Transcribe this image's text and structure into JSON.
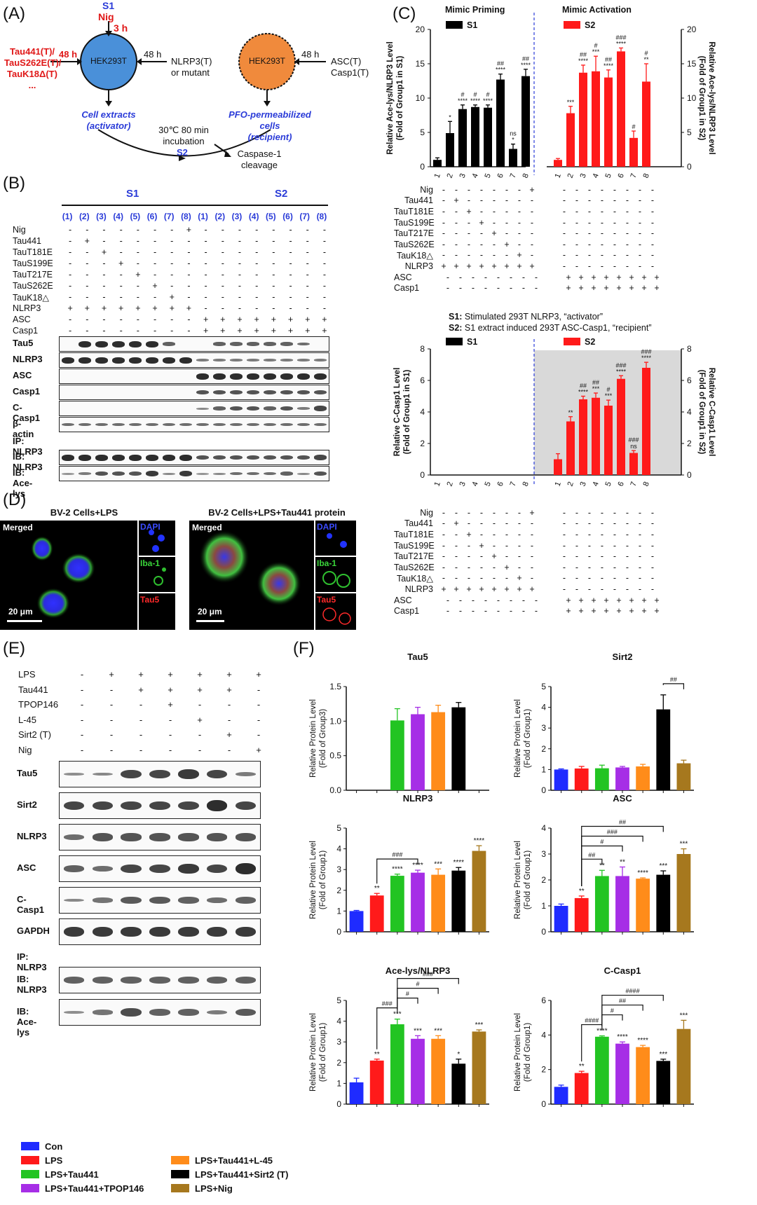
{
  "panel_labels": {
    "a": "(A)",
    "b": "(B)",
    "c": "(C)",
    "d": "(D)",
    "e": "(E)",
    "f": "(F)"
  },
  "panel_a": {
    "s1": "S1",
    "nig": "Nig",
    "time3h": "3 h",
    "taus": [
      "Tau441(T)/",
      "TauS262E(T)/",
      "TauK18Δ(T)",
      "..."
    ],
    "h48_left": "48 h",
    "h48_mid": "48 h",
    "h48_right": "48 h",
    "cell_left": "HEK293T",
    "cell_right": "HEK293T",
    "nlrp3_left": "NLRP3(T)",
    "nlrp3_left2": "or mutant",
    "asc": "ASC(T)",
    "casp1": "Casp1(T)",
    "extracts": "Cell extracts",
    "activator": "(activator)",
    "pfo": "PFO-permeabilized cells",
    "recipient": "(recipient)",
    "incubation1": "30℃ 80 min",
    "incubation2": "incubation",
    "s2": "S2",
    "cleave1": "Caspase-1",
    "cleave2": "cleavage"
  },
  "treatment_rows": [
    {
      "label": "Nig",
      "s1": [
        "-",
        "-",
        "-",
        "-",
        "-",
        "-",
        "-",
        "+"
      ],
      "s2": [
        "-",
        "-",
        "-",
        "-",
        "-",
        "-",
        "-",
        "-"
      ]
    },
    {
      "label": "Tau441",
      "s1": [
        "-",
        "+",
        "-",
        "-",
        "-",
        "-",
        "-",
        "-"
      ],
      "s2": [
        "-",
        "-",
        "-",
        "-",
        "-",
        "-",
        "-",
        "-"
      ]
    },
    {
      "label": "TauT181E",
      "s1": [
        "-",
        "-",
        "+",
        "-",
        "-",
        "-",
        "-",
        "-"
      ],
      "s2": [
        "-",
        "-",
        "-",
        "-",
        "-",
        "-",
        "-",
        "-"
      ]
    },
    {
      "label": "TauS199E",
      "s1": [
        "-",
        "-",
        "-",
        "+",
        "-",
        "-",
        "-",
        "-"
      ],
      "s2": [
        "-",
        "-",
        "-",
        "-",
        "-",
        "-",
        "-",
        "-"
      ]
    },
    {
      "label": "TauT217E",
      "s1": [
        "-",
        "-",
        "-",
        "-",
        "+",
        "-",
        "-",
        "-"
      ],
      "s2": [
        "-",
        "-",
        "-",
        "-",
        "-",
        "-",
        "-",
        "-"
      ]
    },
    {
      "label": "TauS262E",
      "s1": [
        "-",
        "-",
        "-",
        "-",
        "-",
        "+",
        "-",
        "-"
      ],
      "s2": [
        "-",
        "-",
        "-",
        "-",
        "-",
        "-",
        "-",
        "-"
      ]
    },
    {
      "label": "TauK18△",
      "s1": [
        "-",
        "-",
        "-",
        "-",
        "-",
        "-",
        "+",
        "-"
      ],
      "s2": [
        "-",
        "-",
        "-",
        "-",
        "-",
        "-",
        "-",
        "-"
      ]
    },
    {
      "label": "NLRP3",
      "s1": [
        "+",
        "+",
        "+",
        "+",
        "+",
        "+",
        "+",
        "+"
      ],
      "s2": [
        "-",
        "-",
        "-",
        "-",
        "-",
        "-",
        "-",
        "-"
      ]
    },
    {
      "label": "ASC",
      "s1": [
        "-",
        "-",
        "-",
        "-",
        "-",
        "-",
        "-",
        "-"
      ],
      "s2": [
        "+",
        "+",
        "+",
        "+",
        "+",
        "+",
        "+",
        "+"
      ]
    },
    {
      "label": "Casp1",
      "s1": [
        "-",
        "-",
        "-",
        "-",
        "-",
        "-",
        "-",
        "-"
      ],
      "s2": [
        "+",
        "+",
        "+",
        "+",
        "+",
        "+",
        "+",
        "+"
      ]
    }
  ],
  "panel_b": {
    "s1": "S1",
    "s2": "S2",
    "lanes": [
      "(1)",
      "(2)",
      "(3)",
      "(4)",
      "(5)",
      "(6)",
      "(7)",
      "(8)"
    ],
    "blots": [
      "Tau5",
      "NLRP3",
      "ASC",
      "Casp1",
      "C-Casp1",
      "β-actin"
    ],
    "ip": "IP: NLRP3",
    "ib1": "IB: NLRP3",
    "ib2": "IB: Ace-lys"
  },
  "panel_c": {
    "top_left_title": "Mimic Priming",
    "top_right_title": "Mimic Activation",
    "s1": "S1",
    "s2": "S2",
    "ylabel_left": "Relative Ace-lys/NLRP3 Level",
    "ylabel_left2": "(Fold of Group1 in S1)",
    "ylabel_right": "Relative Ace-lys/NLRP3 Level",
    "ylabel_right2": "(Fold of Group1 in S2)",
    "note1_b": "S1:",
    "note1": " Stimulated 293T NLRP3, “activator”",
    "note2_b": "S2:",
    "note2": " S1 extract induced 293T ASC-Casp1, “recipient”",
    "ylabel_b_left": "Relative C-Casp1 Level",
    "ylabel_b_left2": "(Fold of Group1 in S1)",
    "ylabel_b_right": "Relative C-Casp1 Level",
    "ylabel_b_right2": "(Fold of Group1 in S2)"
  },
  "panel_d": {
    "title_left": "BV-2 Cells+LPS",
    "title_right": "BV-2 Cells+LPS+Tau441 protein",
    "merged": "Merged",
    "dapi": "DAPI",
    "iba": "Iba-1",
    "tau5": "Tau5",
    "scale": "20 μm"
  },
  "panel_e": {
    "rows": [
      {
        "label": "LPS",
        "vals": [
          "-",
          "+",
          "+",
          "+",
          "+",
          "+",
          "+"
        ]
      },
      {
        "label": "Tau441",
        "vals": [
          "-",
          "-",
          "+",
          "+",
          "+",
          "+",
          "-"
        ]
      },
      {
        "label": "TPOP146",
        "vals": [
          "-",
          "-",
          "-",
          "+",
          "-",
          "-",
          "-"
        ]
      },
      {
        "label": "L-45",
        "vals": [
          "-",
          "-",
          "-",
          "-",
          "+",
          "-",
          "-"
        ]
      },
      {
        "label": "Sirt2 (T)",
        "vals": [
          "-",
          "-",
          "-",
          "-",
          "-",
          "+",
          "-"
        ]
      },
      {
        "label": "Nig",
        "vals": [
          "-",
          "-",
          "-",
          "-",
          "-",
          "-",
          "+"
        ]
      }
    ],
    "blots": [
      "Tau5",
      "Sirt2",
      "NLRP3",
      "ASC",
      "C-Casp1",
      "GAPDH"
    ],
    "ip": "IP: NLRP3",
    "ib1": "IB: NLRP3",
    "ib2": "IB: Ace-lys"
  },
  "legend": [
    {
      "label": "Con",
      "color": "#1f2bff"
    },
    {
      "label": "LPS",
      "color": "#ff1a1a"
    },
    {
      "label": "LPS+Tau441",
      "color": "#22c422"
    },
    {
      "label": "LPS+Tau441+TPOP146",
      "color": "#a62ee6"
    },
    {
      "label": "LPS+Tau441+L-45",
      "color": "#ff8c1a"
    },
    {
      "label": "LPS+Tau441+Sirt2 (T)",
      "color": "#000000"
    },
    {
      "label": "LPS+Nig",
      "color": "#a6781e"
    }
  ],
  "panel_f_ylabel": "Relative Protein Level",
  "chart_data": [
    {
      "type": "bar",
      "id": "c-top",
      "categories": [
        "1",
        "2",
        "3",
        "4",
        "5",
        "6",
        "7",
        "8"
      ],
      "series": [
        {
          "name": "S1",
          "color": "#000000",
          "values": [
            1.0,
            4.9,
            8.4,
            8.7,
            8.6,
            12.7,
            2.6,
            13.2
          ],
          "err": [
            0.3,
            1.7,
            0.6,
            0.3,
            0.4,
            0.8,
            0.7,
            1.0
          ]
        },
        {
          "name": "S2",
          "color": "#ff1a1a",
          "values": [
            1.0,
            7.8,
            13.7,
            13.9,
            13.0,
            16.8,
            4.2,
            12.4
          ],
          "err": [
            0.2,
            1.0,
            1.1,
            2.2,
            1.1,
            0.5,
            1.0,
            2.6
          ]
        }
      ],
      "ylim": [
        0,
        20
      ],
      "yticks": [
        0,
        5,
        10,
        15,
        20
      ],
      "stars_s1": [
        "",
        "*",
        "****",
        "****",
        "****",
        "****",
        "ns\n*",
        "****"
      ],
      "hash_s1": [
        "",
        "",
        "#",
        "#",
        "#",
        "##",
        "",
        "##"
      ],
      "stars_s2": [
        "",
        "***",
        "****",
        "***",
        "****",
        "****",
        "",
        "**"
      ],
      "hash_s2": [
        "",
        "",
        "##",
        "#",
        "##",
        "###",
        "#",
        "#"
      ]
    },
    {
      "type": "bar",
      "id": "c-bottom",
      "categories": [
        "1",
        "2",
        "3",
        "4",
        "5",
        "6",
        "7",
        "8"
      ],
      "series": [
        {
          "name": "S2",
          "color": "#ff1a1a",
          "values": [
            1.0,
            3.4,
            4.8,
            4.9,
            4.4,
            6.1,
            1.4,
            6.8
          ],
          "err": [
            0.35,
            0.3,
            0.2,
            0.3,
            0.35,
            0.2,
            0.15,
            0.35
          ]
        }
      ],
      "ylim": [
        0,
        8
      ],
      "yticks": [
        0,
        2,
        4,
        6,
        8
      ],
      "stars": [
        "",
        "**",
        "****",
        "***",
        "***",
        "****",
        "ns",
        "****"
      ],
      "hash": [
        "",
        "",
        "##",
        "##",
        "#",
        "###",
        "###",
        "###"
      ]
    },
    {
      "type": "bar",
      "id": "f-tau5",
      "title": "Tau5",
      "ylabel2": "(Fold of Group3)",
      "ylim": [
        0,
        1.5
      ],
      "yticks": [
        0.0,
        0.5,
        1.0,
        1.5
      ],
      "values": [
        null,
        null,
        1.01,
        1.1,
        1.13,
        1.2,
        null
      ],
      "err": [
        0,
        0,
        0.17,
        0.1,
        0.1,
        0.07,
        0
      ],
      "stars": [
        "",
        "",
        "",
        "",
        "",
        "",
        ""
      ]
    },
    {
      "type": "bar",
      "id": "f-sirt2",
      "title": "Sirt2",
      "ylabel2": "(Fold of Group1)",
      "ylim": [
        0,
        5
      ],
      "yticks": [
        0,
        1,
        2,
        3,
        4,
        5
      ],
      "values": [
        1.0,
        1.05,
        1.06,
        1.1,
        1.15,
        3.9,
        1.3
      ],
      "err": [
        0.03,
        0.1,
        0.15,
        0.05,
        0.1,
        0.7,
        0.15
      ],
      "stars": [
        "",
        "",
        "",
        "",
        "",
        "",
        ""
      ],
      "brackets": [
        {
          "from": 5,
          "to": 6,
          "label": "##"
        }
      ]
    },
    {
      "type": "bar",
      "id": "f-nlrp3",
      "title": "NLRP3",
      "ylabel2": "(Fold of Group1)",
      "ylim": [
        0,
        5
      ],
      "yticks": [
        0,
        1,
        2,
        3,
        4,
        5
      ],
      "values": [
        1.0,
        1.75,
        2.7,
        2.85,
        2.75,
        2.95,
        3.9
      ],
      "err": [
        0.03,
        0.1,
        0.08,
        0.12,
        0.28,
        0.15,
        0.25
      ],
      "stars": [
        "",
        "**",
        "****",
        "****",
        "***",
        "****",
        "****"
      ],
      "brackets": [
        {
          "from": 1,
          "to": 3,
          "label": "###"
        }
      ]
    },
    {
      "type": "bar",
      "id": "f-asc",
      "title": "ASC",
      "ylabel2": "(Fold of Group1)",
      "ylim": [
        0,
        4
      ],
      "yticks": [
        0,
        1,
        2,
        3,
        4
      ],
      "values": [
        1.0,
        1.3,
        2.15,
        2.15,
        2.05,
        2.2,
        3.0
      ],
      "err": [
        0.07,
        0.08,
        0.22,
        0.35,
        0.03,
        0.15,
        0.2
      ],
      "stars": [
        "",
        "**",
        "**",
        "**",
        "****",
        "***",
        "***"
      ],
      "brackets": [
        {
          "from": 1,
          "to": 2,
          "label": "##"
        },
        {
          "from": 1,
          "to": 3,
          "label": "#"
        },
        {
          "from": 1,
          "to": 4,
          "label": "###"
        },
        {
          "from": 1,
          "to": 5,
          "label": "##"
        }
      ]
    },
    {
      "type": "bar",
      "id": "f-acelys",
      "title": "Ace-lys/NLRP3",
      "ylabel2": "(Fold of Group1)",
      "ylim": [
        0,
        5
      ],
      "yticks": [
        0,
        1,
        2,
        3,
        4,
        5
      ],
      "values": [
        1.05,
        2.1,
        3.85,
        3.15,
        3.15,
        1.95,
        3.5
      ],
      "err": [
        0.2,
        0.07,
        0.25,
        0.15,
        0.15,
        0.22,
        0.08
      ],
      "stars": [
        "",
        "**",
        "***",
        "***",
        "***",
        "*",
        "***"
      ],
      "brackets": [
        {
          "from": 1,
          "to": 2,
          "label": "###"
        },
        {
          "from": 2,
          "to": 3,
          "label": "#"
        },
        {
          "from": 2,
          "to": 4,
          "label": "#"
        },
        {
          "from": 2,
          "to": 5,
          "label": "###"
        }
      ]
    },
    {
      "type": "bar",
      "id": "f-ccasp1",
      "title": "C-Casp1",
      "ylabel2": "(Fold of Group1)",
      "ylim": [
        0,
        6
      ],
      "yticks": [
        0,
        2,
        4,
        6
      ],
      "values": [
        1.0,
        1.8,
        3.9,
        3.5,
        3.3,
        2.5,
        4.35
      ],
      "err": [
        0.1,
        0.1,
        0.05,
        0.1,
        0.1,
        0.1,
        0.5
      ],
      "stars": [
        "",
        "**",
        "****",
        "****",
        "****",
        "***",
        "***"
      ],
      "brackets": [
        {
          "from": 1,
          "to": 2,
          "label": "####"
        },
        {
          "from": 2,
          "to": 3,
          "label": "#"
        },
        {
          "from": 2,
          "to": 4,
          "label": "##"
        },
        {
          "from": 2,
          "to": 5,
          "label": "####"
        }
      ]
    }
  ]
}
